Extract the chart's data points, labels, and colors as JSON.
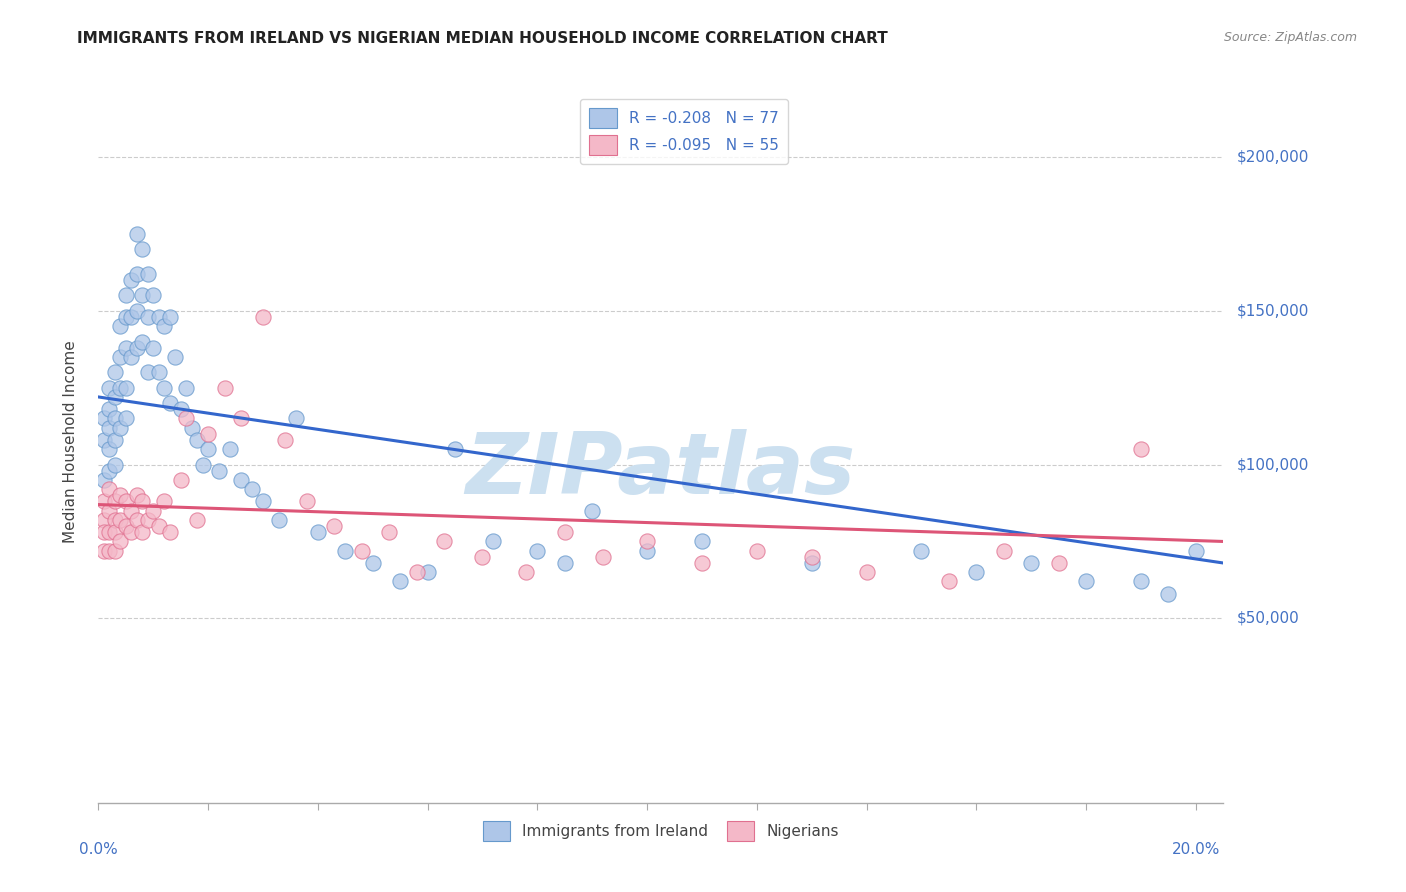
{
  "title": "IMMIGRANTS FROM IRELAND VS NIGERIAN MEDIAN HOUSEHOLD INCOME CORRELATION CHART",
  "source": "Source: ZipAtlas.com",
  "ylabel": "Median Household Income",
  "legend_entries": [
    {
      "label": "R = -0.208   N = 77",
      "color": "#aec6e8"
    },
    {
      "label": "R = -0.095   N = 55",
      "color": "#f4b8c8"
    }
  ],
  "legend_labels_bottom": [
    "Immigrants from Ireland",
    "Nigerians"
  ],
  "blue_scatter_color": "#aec6e8",
  "blue_scatter_edge": "#6699cc",
  "pink_scatter_color": "#f4b8c8",
  "pink_scatter_edge": "#e07090",
  "blue_line_color": "#3366cc",
  "pink_line_color": "#dd5577",
  "watermark": "ZIPatlas",
  "watermark_color": "#cce0f0",
  "ytick_labels": [
    "$50,000",
    "$100,000",
    "$150,000",
    "$200,000"
  ],
  "ytick_values": [
    50000,
    100000,
    150000,
    200000
  ],
  "ylim": [
    -10000,
    225000
  ],
  "xlim": [
    0.0,
    0.205
  ],
  "blue_trend_x0": 0.0,
  "blue_trend_y0": 122000,
  "blue_trend_x1": 0.205,
  "blue_trend_y1": 68000,
  "pink_trend_x0": 0.0,
  "pink_trend_y0": 87000,
  "pink_trend_x1": 0.205,
  "pink_trend_y1": 75000,
  "ireland_x": [
    0.001,
    0.001,
    0.001,
    0.002,
    0.002,
    0.002,
    0.002,
    0.002,
    0.003,
    0.003,
    0.003,
    0.003,
    0.003,
    0.004,
    0.004,
    0.004,
    0.004,
    0.005,
    0.005,
    0.005,
    0.005,
    0.005,
    0.006,
    0.006,
    0.006,
    0.007,
    0.007,
    0.007,
    0.007,
    0.008,
    0.008,
    0.008,
    0.009,
    0.009,
    0.009,
    0.01,
    0.01,
    0.011,
    0.011,
    0.012,
    0.012,
    0.013,
    0.013,
    0.014,
    0.015,
    0.016,
    0.017,
    0.018,
    0.019,
    0.02,
    0.022,
    0.024,
    0.026,
    0.028,
    0.03,
    0.033,
    0.036,
    0.04,
    0.045,
    0.05,
    0.055,
    0.06,
    0.065,
    0.072,
    0.08,
    0.085,
    0.09,
    0.1,
    0.11,
    0.13,
    0.15,
    0.16,
    0.17,
    0.18,
    0.19,
    0.195,
    0.2
  ],
  "ireland_y": [
    115000,
    108000,
    95000,
    125000,
    118000,
    112000,
    105000,
    98000,
    130000,
    122000,
    115000,
    108000,
    100000,
    145000,
    135000,
    125000,
    112000,
    155000,
    148000,
    138000,
    125000,
    115000,
    160000,
    148000,
    135000,
    175000,
    162000,
    150000,
    138000,
    170000,
    155000,
    140000,
    162000,
    148000,
    130000,
    155000,
    138000,
    148000,
    130000,
    145000,
    125000,
    148000,
    120000,
    135000,
    118000,
    125000,
    112000,
    108000,
    100000,
    105000,
    98000,
    105000,
    95000,
    92000,
    88000,
    82000,
    115000,
    78000,
    72000,
    68000,
    62000,
    65000,
    105000,
    75000,
    72000,
    68000,
    85000,
    72000,
    75000,
    68000,
    72000,
    65000,
    68000,
    62000,
    62000,
    58000,
    72000
  ],
  "nigerian_x": [
    0.001,
    0.001,
    0.001,
    0.001,
    0.002,
    0.002,
    0.002,
    0.002,
    0.003,
    0.003,
    0.003,
    0.003,
    0.004,
    0.004,
    0.004,
    0.005,
    0.005,
    0.006,
    0.006,
    0.007,
    0.007,
    0.008,
    0.008,
    0.009,
    0.01,
    0.011,
    0.012,
    0.013,
    0.015,
    0.016,
    0.018,
    0.02,
    0.023,
    0.026,
    0.03,
    0.034,
    0.038,
    0.043,
    0.048,
    0.053,
    0.058,
    0.063,
    0.07,
    0.078,
    0.085,
    0.092,
    0.1,
    0.11,
    0.12,
    0.13,
    0.14,
    0.155,
    0.165,
    0.175,
    0.19
  ],
  "nigerian_y": [
    88000,
    82000,
    78000,
    72000,
    92000,
    85000,
    78000,
    72000,
    88000,
    82000,
    78000,
    72000,
    90000,
    82000,
    75000,
    88000,
    80000,
    85000,
    78000,
    90000,
    82000,
    88000,
    78000,
    82000,
    85000,
    80000,
    88000,
    78000,
    95000,
    115000,
    82000,
    110000,
    125000,
    115000,
    148000,
    108000,
    88000,
    80000,
    72000,
    78000,
    65000,
    75000,
    70000,
    65000,
    78000,
    70000,
    75000,
    68000,
    72000,
    70000,
    65000,
    62000,
    72000,
    68000,
    105000
  ]
}
